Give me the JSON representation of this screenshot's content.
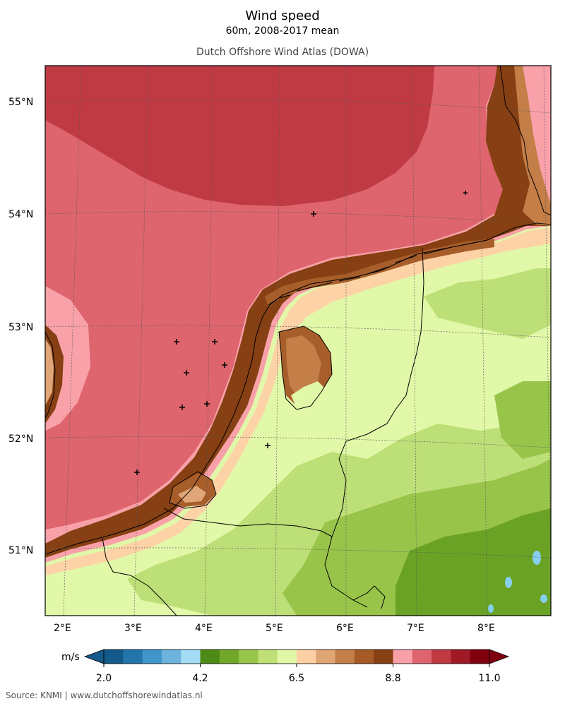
{
  "title": "Wind speed",
  "subtitle": "60m, 2008-2017 mean",
  "source_title": "Dutch Offshore Wind Atlas (DOWA)",
  "footer": "Source: KNMI | www.dutchoffshorewindatlas.nl",
  "map": {
    "lat_labels": [
      "55°N",
      "54°N",
      "53°N",
      "52°N",
      "51°N"
    ],
    "lon_labels": [
      "2°E",
      "3°E",
      "4°E",
      "5°E",
      "6°E",
      "7°E",
      "8°E"
    ],
    "stations_count": 11
  },
  "colorbar": {
    "unit": "m/s",
    "tick_labels": [
      "2.0",
      "4.2",
      "6.5",
      "8.8",
      "11.0"
    ],
    "colors": [
      "#135a8a",
      "#2276aa",
      "#4096c8",
      "#6db3dd",
      "#a3dcf5",
      "#4e8b16",
      "#72a82a",
      "#98c44a",
      "#bfdf77",
      "#e0f7a6",
      "#fcd0a4",
      "#e0a574",
      "#c47e47",
      "#a65a25",
      "#864013",
      "#f8a0a8",
      "#de6470",
      "#c03840",
      "#a01a26",
      "#80000f"
    ],
    "under_color": "#135a8a",
    "over_color": "#80000f"
  },
  "colors": {
    "sea_far": "#c03a44",
    "sea_mid": "#de646e",
    "sea_near": "#f9a1a9",
    "coast_dark": "#864013",
    "coast_mid": "#a85e2a",
    "coast_light": "#e0a677",
    "land_peach": "#fdd2a6",
    "land_light": "#e1f8a8",
    "land_green": "#bddf77",
    "land_mid": "#98c44a",
    "land_dark": "#6aa226",
    "water": "#87cfee"
  }
}
